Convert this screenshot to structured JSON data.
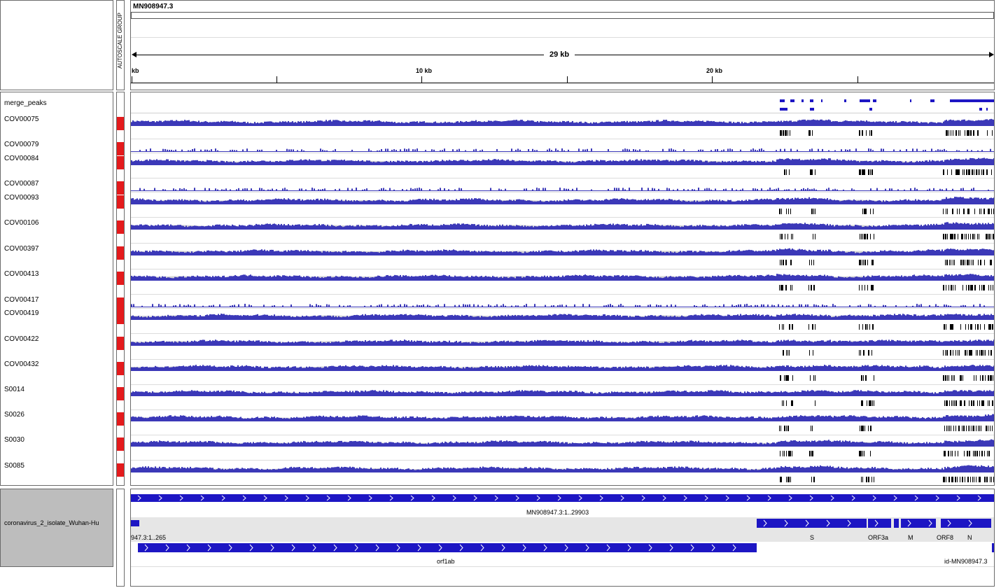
{
  "genome": "MN908947.3",
  "ruler": {
    "span_label": "29 kb",
    "ticks": [
      {
        "label": "kb",
        "x": 187
      },
      {
        "label": "10 kb",
        "x": 601
      },
      {
        "label": "20 kb",
        "x": 1016
      }
    ]
  },
  "attribute_header": "AUTOSCALE GROUP",
  "colors": {
    "coverage": "#3b38b8",
    "coverage_bg": "#d4d4d4",
    "peaks": "#1d16c4",
    "feature": "#1d16c4",
    "attribute": "#e41a1c",
    "feature_bg": "#bdbdbd"
  },
  "merge_peaks_label": "merge_peaks",
  "tracks": [
    {
      "name": "COV00075"
    },
    {
      "name": "COV00079"
    },
    {
      "name": "COV00084"
    },
    {
      "name": "COV00087"
    },
    {
      "name": "COV00093"
    },
    {
      "name": "COV00106"
    },
    {
      "name": "COV00397"
    },
    {
      "name": "COV00413"
    },
    {
      "name": "COV00417"
    },
    {
      "name": "COV00419"
    },
    {
      "name": "COV00422"
    },
    {
      "name": "COV00432"
    },
    {
      "name": "S0014"
    },
    {
      "name": "S0026"
    },
    {
      "name": "S0030"
    },
    {
      "name": "S0085"
    }
  ],
  "feature_track": {
    "name": "coronavirus_2_isolate_Wuhan-Hu",
    "gene_label": "MN908947.3:1..29903",
    "utr_label": "947.3:1..265",
    "orf1ab_label": "orf1ab",
    "id_label": "id-MN908947.3",
    "genes": [
      {
        "name": "S"
      },
      {
        "name": "ORF3a"
      },
      {
        "name": "M"
      },
      {
        "name": "ORF8"
      },
      {
        "name": "N"
      }
    ]
  }
}
